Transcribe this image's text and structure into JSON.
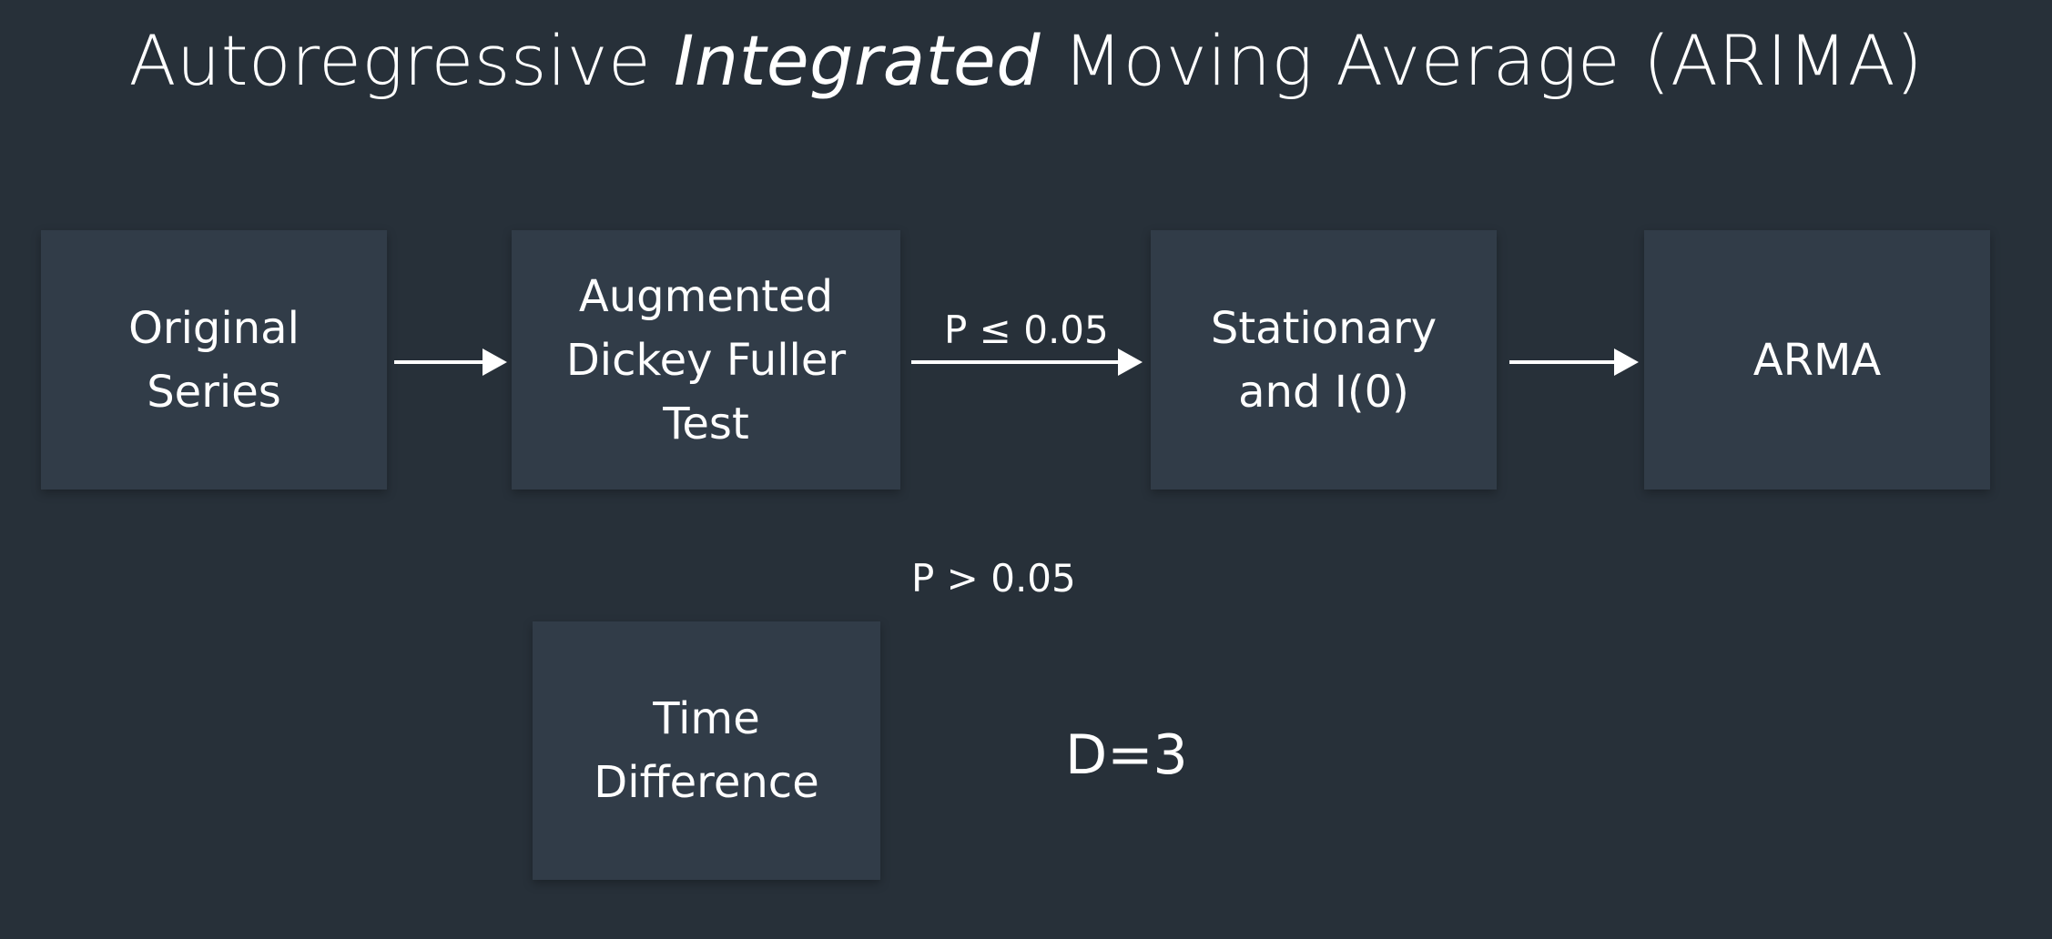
{
  "title": {
    "before": "Autoregressive ",
    "emphasis": "Integrated",
    "after": " Moving Average (ARIMA)"
  },
  "nodes": {
    "original_series": "Original\nSeries",
    "adf_test": "Augmented\nDickey Fuller\nTest",
    "stationary": "Stationary\nand  I(0)",
    "arma": "ARMA",
    "time_difference": "Time\nDifference"
  },
  "edges": {
    "p_le_label": "P ≤ 0.05",
    "p_gt_label": "P > 0.05"
  },
  "annotation": {
    "d_value": "D=3"
  },
  "colors": {
    "background": "#273039",
    "box_fill": "#313c48",
    "text": "#ffffff"
  }
}
